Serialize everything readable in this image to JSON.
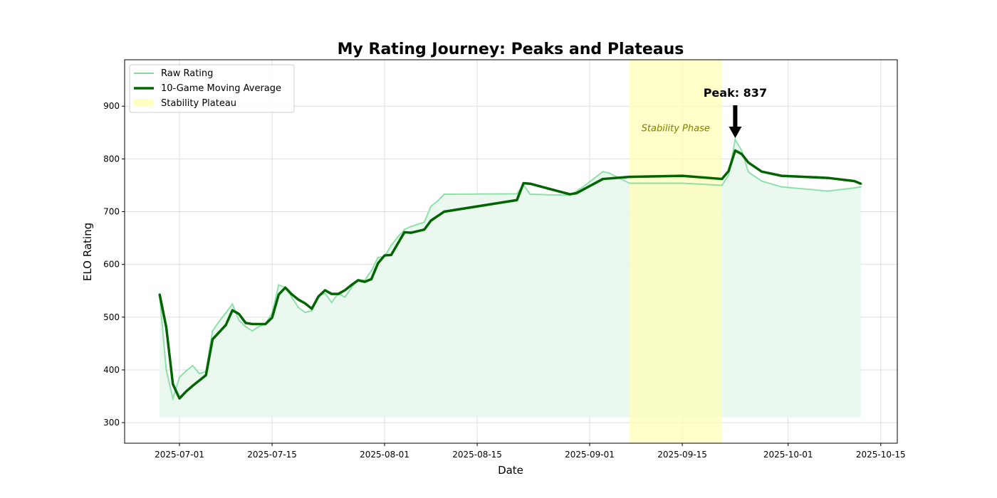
{
  "chart_data": {
    "type": "line",
    "title": "My Rating Journey: Peaks and Plateaus",
    "xlabel": "Date",
    "ylabel": "ELO Rating",
    "xlim": [
      "2025-06-22T17:00",
      "2025-10-17T12:00"
    ],
    "ylim": [
      261,
      988
    ],
    "fill_baseline": 310,
    "grid": true,
    "legend_position": "top-left",
    "x_ticks": [
      "2025-07-01",
      "2025-07-15",
      "2025-08-01",
      "2025-08-15",
      "2025-09-01",
      "2025-09-15",
      "2025-10-01",
      "2025-10-15"
    ],
    "y_ticks": [
      300,
      400,
      500,
      600,
      700,
      800,
      900
    ],
    "colors": {
      "raw": "#7ddc9e",
      "moving_average": "#006400",
      "fill": "#e8f7ed",
      "plateau": "#ffffb3",
      "annotation_text": "#808000"
    },
    "series": [
      {
        "name": "Raw Rating",
        "points": [
          [
            "2025-06-28",
            541
          ],
          [
            "2025-06-29",
            400
          ],
          [
            "2025-06-30",
            346
          ],
          [
            "2025-07-01",
            386
          ],
          [
            "2025-07-02",
            398
          ],
          [
            "2025-07-03",
            408
          ],
          [
            "2025-07-04",
            393
          ],
          [
            "2025-07-05",
            397
          ],
          [
            "2025-07-06",
            474
          ],
          [
            "2025-07-07",
            492
          ],
          [
            "2025-07-08",
            508
          ],
          [
            "2025-07-09",
            525
          ],
          [
            "2025-07-10",
            494
          ],
          [
            "2025-07-11",
            482
          ],
          [
            "2025-07-12",
            474
          ],
          [
            "2025-07-13",
            482
          ],
          [
            "2025-07-14",
            487
          ],
          [
            "2025-07-15",
            508
          ],
          [
            "2025-07-16",
            561
          ],
          [
            "2025-07-17",
            556
          ],
          [
            "2025-07-18",
            537
          ],
          [
            "2025-07-19",
            518
          ],
          [
            "2025-07-20",
            509
          ],
          [
            "2025-07-21",
            512
          ],
          [
            "2025-07-22",
            541
          ],
          [
            "2025-07-23",
            545
          ],
          [
            "2025-07-24",
            528
          ],
          [
            "2025-07-25",
            545
          ],
          [
            "2025-07-26",
            538
          ],
          [
            "2025-07-27",
            556
          ],
          [
            "2025-07-28",
            571
          ],
          [
            "2025-07-29",
            570
          ],
          [
            "2025-07-30",
            588
          ],
          [
            "2025-07-31",
            613
          ],
          [
            "2025-08-01",
            615
          ],
          [
            "2025-08-02",
            636
          ],
          [
            "2025-08-03",
            652
          ],
          [
            "2025-08-04",
            666
          ],
          [
            "2025-08-05",
            672
          ],
          [
            "2025-08-06",
            676
          ],
          [
            "2025-08-07",
            680
          ],
          [
            "2025-08-08",
            710
          ],
          [
            "2025-08-09",
            720
          ],
          [
            "2025-08-10",
            733
          ],
          [
            "2025-08-21",
            734
          ],
          [
            "2025-08-22",
            751
          ],
          [
            "2025-08-23",
            733
          ],
          [
            "2025-08-29",
            731
          ],
          [
            "2025-08-31",
            747
          ],
          [
            "2025-09-03",
            776
          ],
          [
            "2025-09-04",
            773
          ],
          [
            "2025-09-07",
            754
          ],
          [
            "2025-09-15",
            754
          ],
          [
            "2025-09-21",
            750
          ],
          [
            "2025-09-22",
            770
          ],
          [
            "2025-09-23",
            837
          ],
          [
            "2025-09-24",
            815
          ],
          [
            "2025-09-25",
            775
          ],
          [
            "2025-09-27",
            758
          ],
          [
            "2025-09-30",
            747
          ],
          [
            "2025-10-07",
            739
          ],
          [
            "2025-10-11",
            745
          ],
          [
            "2025-10-12",
            747
          ]
        ]
      },
      {
        "name": "10-Game Moving Average",
        "points": [
          [
            "2025-06-28",
            543
          ],
          [
            "2025-06-29",
            481
          ],
          [
            "2025-06-30",
            373
          ],
          [
            "2025-07-01",
            346
          ],
          [
            "2025-07-02",
            359
          ],
          [
            "2025-07-03",
            370
          ],
          [
            "2025-07-05",
            390
          ],
          [
            "2025-07-06",
            458
          ],
          [
            "2025-07-08",
            485
          ],
          [
            "2025-07-09",
            513
          ],
          [
            "2025-07-10",
            506
          ],
          [
            "2025-07-11",
            489
          ],
          [
            "2025-07-12",
            487
          ],
          [
            "2025-07-14",
            487
          ],
          [
            "2025-07-15",
            499
          ],
          [
            "2025-07-16",
            543
          ],
          [
            "2025-07-17",
            556
          ],
          [
            "2025-07-18",
            543
          ],
          [
            "2025-07-19",
            533
          ],
          [
            "2025-07-20",
            526
          ],
          [
            "2025-07-21",
            516
          ],
          [
            "2025-07-22",
            539
          ],
          [
            "2025-07-23",
            551
          ],
          [
            "2025-07-24",
            544
          ],
          [
            "2025-07-25",
            544
          ],
          [
            "2025-07-26",
            551
          ],
          [
            "2025-07-27",
            561
          ],
          [
            "2025-07-28",
            570
          ],
          [
            "2025-07-29",
            567
          ],
          [
            "2025-07-30",
            572
          ],
          [
            "2025-07-31",
            602
          ],
          [
            "2025-08-01",
            617
          ],
          [
            "2025-08-02",
            618
          ],
          [
            "2025-08-04",
            661
          ],
          [
            "2025-08-05",
            660
          ],
          [
            "2025-08-07",
            666
          ],
          [
            "2025-08-08",
            683
          ],
          [
            "2025-08-10",
            700
          ],
          [
            "2025-08-21",
            722
          ],
          [
            "2025-08-22",
            754
          ],
          [
            "2025-08-23",
            753
          ],
          [
            "2025-08-29",
            733
          ],
          [
            "2025-08-30",
            735
          ],
          [
            "2025-09-03",
            762
          ],
          [
            "2025-09-07",
            766
          ],
          [
            "2025-09-15",
            768
          ],
          [
            "2025-09-21",
            762
          ],
          [
            "2025-09-22",
            777
          ],
          [
            "2025-09-23",
            816
          ],
          [
            "2025-09-24",
            809
          ],
          [
            "2025-09-25",
            793
          ],
          [
            "2025-09-27",
            776
          ],
          [
            "2025-09-30",
            768
          ],
          [
            "2025-10-07",
            764
          ],
          [
            "2025-10-11",
            758
          ],
          [
            "2025-10-12",
            753
          ]
        ]
      }
    ],
    "plateau": {
      "name": "Stability Plateau",
      "start": "2025-09-07",
      "end": "2025-09-21",
      "label": "Stability Phase",
      "label_date": "2025-09-14",
      "label_value": 858
    },
    "peak": {
      "label": "Peak: 837",
      "date": "2025-09-23",
      "value": 837
    }
  }
}
